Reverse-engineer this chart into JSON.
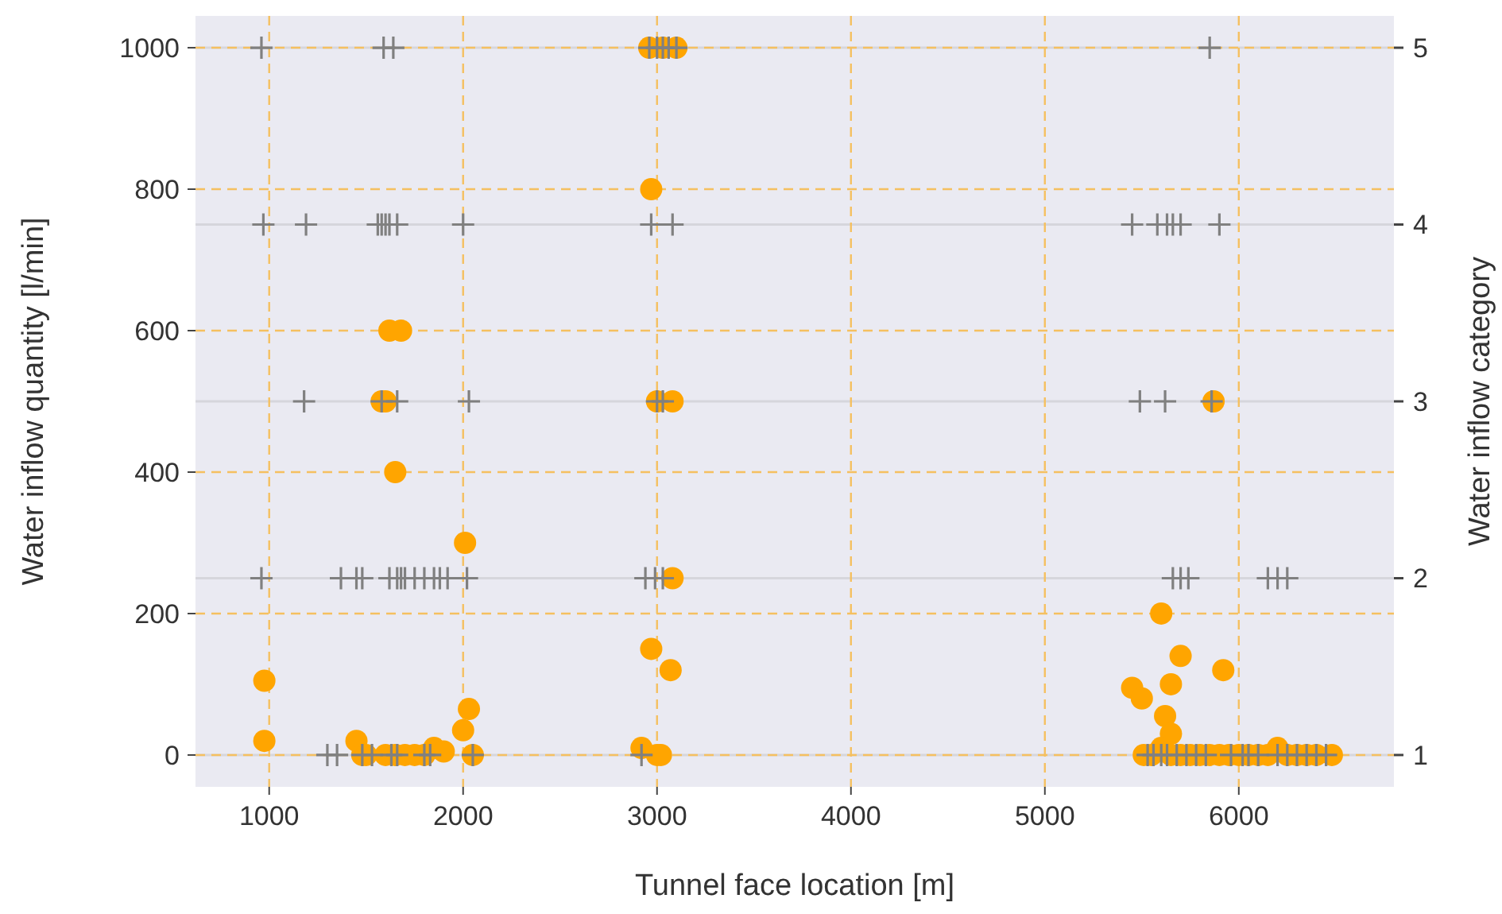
{
  "chart_data": {
    "type": "scatter",
    "xlabel": "Tunnel face location [m]",
    "ylabel": "Water inflow quantity [l/min]",
    "y2label": "Water inflow category",
    "xlim": [
      620,
      6800
    ],
    "xticks": [
      1000,
      2000,
      3000,
      4000,
      5000,
      6000
    ],
    "ylim": [
      -45,
      1045
    ],
    "yticks": [
      0,
      200,
      400,
      600,
      800,
      1000
    ],
    "y2lim": [
      0.82,
      5.18
    ],
    "y2ticks": [
      1,
      2,
      3,
      4,
      5
    ],
    "grid": true,
    "series": [
      {
        "type": "scatter",
        "marker": "circle",
        "color": "#ffa500",
        "x": [
          975,
          975,
          1450,
          1480,
          1500,
          1600,
          1650,
          1700,
          1750,
          1800,
          1850,
          1900,
          2000,
          2030,
          2050,
          1580,
          1600,
          1620,
          1680,
          1650,
          2010,
          2960,
          3030,
          3100,
          2970,
          3000,
          3080,
          3080,
          2970,
          3070,
          2920,
          3000,
          3020,
          5870,
          5600,
          5450,
          5500,
          5650,
          5700,
          5620,
          5920,
          5650,
          5600,
          5510,
          5550,
          5650,
          5700,
          5750,
          5800,
          5850,
          5900,
          5950,
          6000,
          6050,
          6100,
          6150,
          6200,
          6250,
          6300,
          6350,
          6400,
          6480
        ],
        "values": [
          105,
          20,
          20,
          0,
          0,
          0,
          0,
          0,
          0,
          0,
          10,
          5,
          35,
          65,
          0,
          500,
          500,
          600,
          600,
          400,
          300,
          1000,
          1000,
          1000,
          800,
          500,
          500,
          250,
          150,
          120,
          10,
          0,
          0,
          500,
          200,
          95,
          80,
          100,
          140,
          55,
          120,
          30,
          10,
          0,
          0,
          0,
          0,
          0,
          0,
          0,
          0,
          0,
          0,
          0,
          0,
          0,
          10,
          0,
          0,
          0,
          0,
          0
        ]
      },
      {
        "type": "scatter",
        "marker": "cross",
        "axis": "y2",
        "color": "#808080",
        "x": [
          960,
          1590,
          1640,
          2960,
          3000,
          3030,
          3060,
          3100,
          5850,
          970,
          1190,
          1560,
          1580,
          1600,
          1620,
          1660,
          2000,
          2970,
          3080,
          5450,
          5580,
          5630,
          5660,
          5700,
          5900,
          1180,
          1580,
          1660,
          2030,
          3000,
          3030,
          5490,
          5620,
          5860,
          960,
          1370,
          1450,
          1480,
          1620,
          1660,
          1680,
          1700,
          1750,
          1800,
          1850,
          1880,
          1920,
          2020,
          2940,
          2990,
          3030,
          5660,
          5700,
          5740,
          6150,
          6200,
          6250,
          1300,
          1350,
          1480,
          1530,
          1630,
          1660,
          1800,
          1830,
          2050,
          2920,
          5530,
          5560,
          5600,
          5630,
          5680,
          5730,
          5780,
          5830,
          5960,
          6020,
          6050,
          6100,
          6200,
          6250,
          6300,
          6350,
          6400,
          6450
        ],
        "values": [
          5,
          5,
          5,
          5,
          5,
          5,
          5,
          5,
          5,
          4,
          4,
          4,
          4,
          4,
          4,
          4,
          4,
          4,
          4,
          4,
          4,
          4,
          4,
          4,
          4,
          3,
          3,
          3,
          3,
          3,
          3,
          3,
          3,
          3,
          2,
          2,
          2,
          2,
          2,
          2,
          2,
          2,
          2,
          2,
          2,
          2,
          2,
          2,
          2,
          2,
          2,
          2,
          2,
          2,
          2,
          2,
          2,
          1,
          1,
          1,
          1,
          1,
          1,
          1,
          1,
          1,
          1,
          1,
          1,
          1,
          1,
          1,
          1,
          1,
          1,
          1,
          1,
          1,
          1,
          1,
          1,
          1,
          1,
          1,
          1
        ]
      }
    ]
  }
}
